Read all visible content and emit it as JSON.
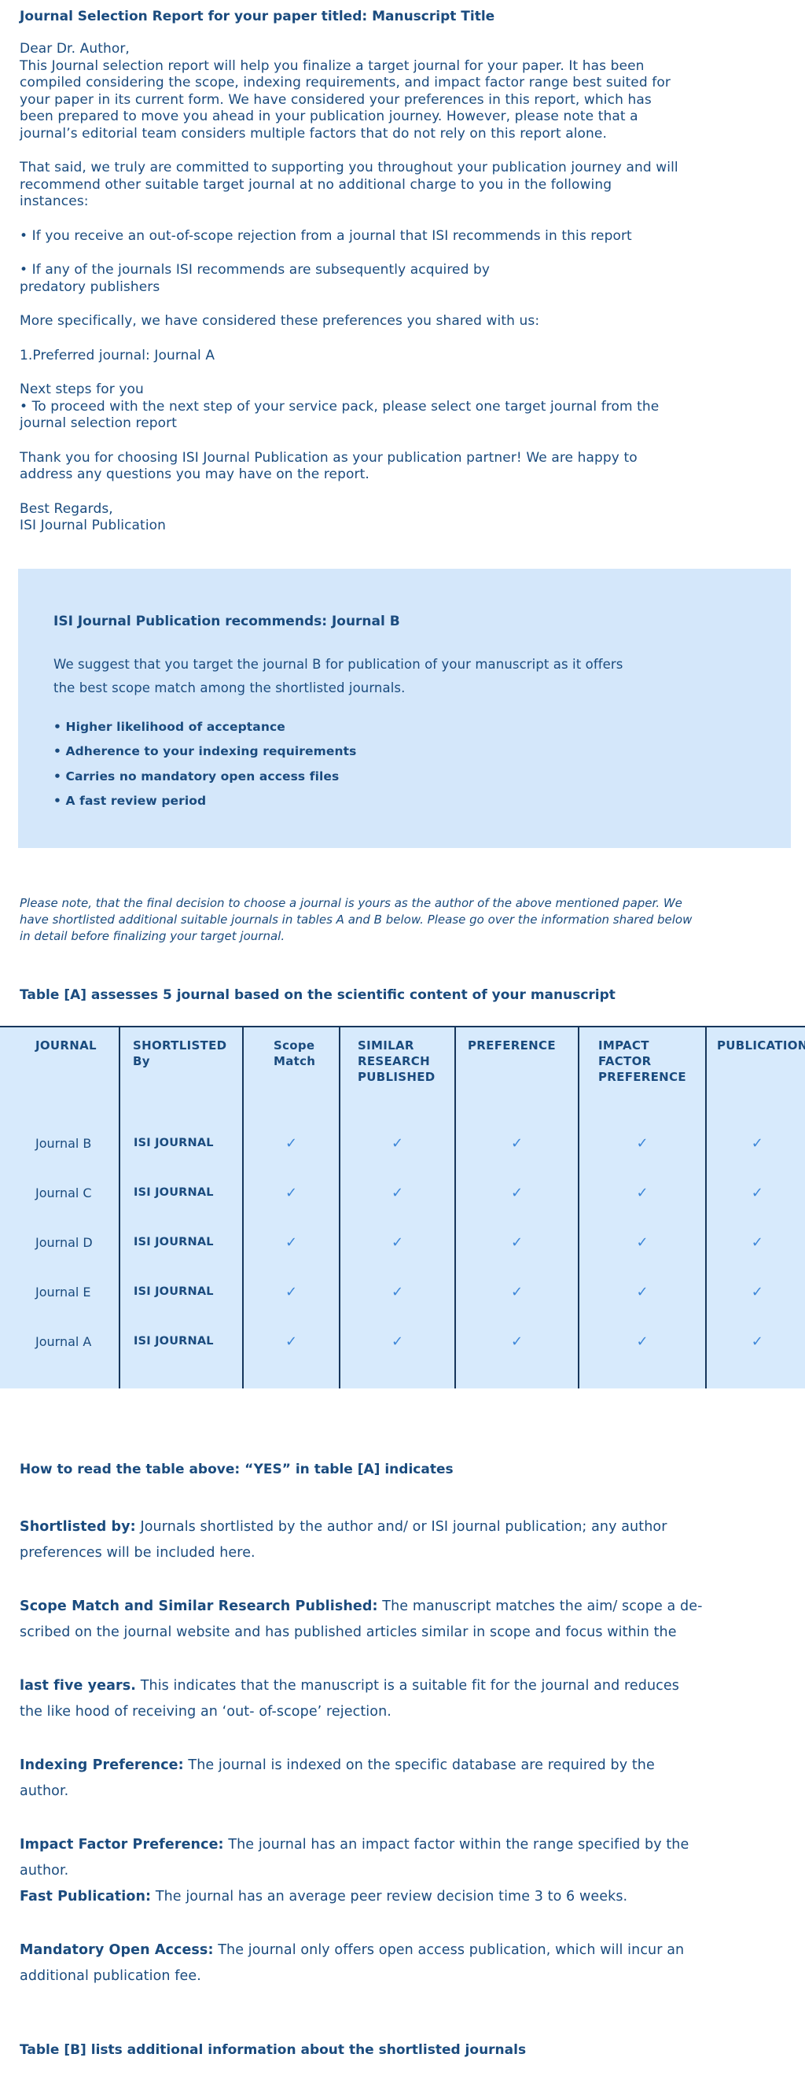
{
  "colors": {
    "text_navy": "#1a4b7e",
    "check_blue": "#3c86d8",
    "box_background": "#d4e7fa",
    "table_background": "#d7eafc",
    "table_border": "#16365c"
  },
  "letter": {
    "title": "Journal Selection Report for your paper titled: Manuscript Title",
    "intro": "Dear Dr. Author,\nThis Journal selection report will help you finalize a target journal for your paper. It has been\ncompiled considering the scope, indexing requirements, and impact factor range best suited for\nyour paper in its current form. We have considered your preferences in this report, which has\nbeen prepared to move you ahead in your publication journey. However, please note that a\njournal’s editorial team considers multiple factors that do not rely on this report alone.",
    "para_commitment": "That said, we truly are committed to supporting you throughout your publication journey and will\nrecommend other suitable target journal at no additional charge to you in the following\ninstances:",
    "bullet_out_of_scope": "• If you receive an out-of-scope rejection from a journal that ISI recommends in this report",
    "bullet_predatory": "• If any of the journals ISI recommends are subsequently acquired by\npredatory publishers",
    "para_preferences": "More specifically, we have considered these preferences you shared with us:",
    "preferred_journal": "1.Preferred journal: Journal A",
    "next_steps": "Next steps for you\n• To proceed with the next step of your service pack, please select one target journal from the\njournal selection report",
    "closing": "Thank you for choosing ISI Journal Publication as your publication partner! We are happy to\naddress any questions you may have on the report.",
    "signature": "Best Regards,\nISI Journal Publication"
  },
  "recommendation_box": {
    "heading": "ISI Journal Publication recommends: Journal B",
    "body": "We suggest that you target the journal B for publication of your manuscript as it offers\nthe best scope match among the shortlisted journals.",
    "bullets": [
      "• Higher likelihood of acceptance",
      "• Adherence to your indexing requirements",
      "• Carries no mandatory open access files",
      "• A fast review period"
    ]
  },
  "note_italic": "Please note, that the final decision to choose a journal is yours as the author of the above mentioned paper. We\nhave shortlisted additional suitable journals in tables A and B below. Please go over the information shared below\nin detail before finalizing your target journal.",
  "table_a": {
    "heading": "Table [A] assesses 5 journal based on the scientific content of your manuscript",
    "columns": [
      "JOURNAL",
      "SHORTLISTED\nBy",
      "Scope\nMatch",
      "SIMILAR\nRESEARCH\nPUBLISHED",
      "PREFERENCE",
      "IMPACT\nFACTOR\nPREFERENCE",
      "PUBLICATION"
    ],
    "check_glyph": "✓",
    "rows": [
      {
        "journal": "Journal B",
        "shortlisted_by": "ISI JOURNAL",
        "checks": [
          "✓",
          "✓",
          "✓",
          "✓",
          "✓"
        ]
      },
      {
        "journal": "Journal C",
        "shortlisted_by": "ISI JOURNAL",
        "checks": [
          "✓",
          "✓",
          "✓",
          "✓",
          "✓"
        ]
      },
      {
        "journal": "Journal D",
        "shortlisted_by": "ISI JOURNAL",
        "checks": [
          "✓",
          "✓",
          "✓",
          "✓",
          "✓"
        ]
      },
      {
        "journal": "Journal E",
        "shortlisted_by": "ISI JOURNAL",
        "checks": [
          "✓",
          "✓",
          "✓",
          "✓",
          "✓"
        ]
      },
      {
        "journal": "Journal A",
        "shortlisted_by": "ISI JOURNAL",
        "checks": [
          "✓",
          "✓",
          "✓",
          "✓",
          "✓"
        ]
      }
    ]
  },
  "how_to_read": "How to read the table above: “YES” in table [A] indicates",
  "definitions": [
    {
      "lead": "Shortlisted by:",
      "text": "Journals shortlisted by the author and/ or ISI journal publication; any author\npreferences will be included here."
    },
    {
      "lead": "Scope Match and Similar Research Published:",
      "text": "The manuscript matches the aim/ scope a de-\nscribed on the journal website and has published articles similar in scope and focus within the"
    },
    {
      "lead": "last five years.",
      "text": "This indicates that the manuscript is a suitable fit for the journal and reduces\nthe like hood of receiving an ‘out- of-scope’ rejection."
    },
    {
      "lead": "Indexing Preference:",
      "text": "The journal is indexed on the specific database are required by the\nauthor."
    },
    {
      "lead": "Impact Factor Preference:",
      "text": "The journal has an impact factor within the range specified by the\nauthor.",
      "gap_after": "none"
    },
    {
      "lead": "Fast Publication:",
      "text": "The journal has an average peer review decision time 3 to 6 weeks."
    },
    {
      "lead": "Mandatory Open Access:",
      "text": "The journal only offers open access publication, which will incur an\nadditional publication fee."
    }
  ],
  "table_b": {
    "heading": "Table [B] lists additional information about the shortlisted journals"
  }
}
